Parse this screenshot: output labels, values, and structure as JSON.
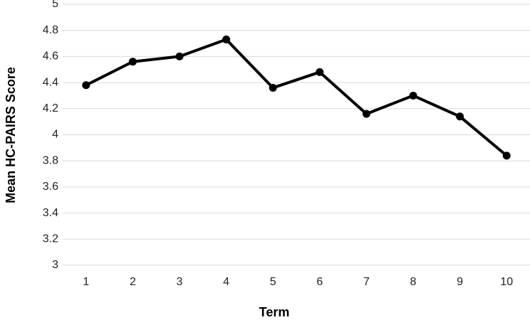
{
  "chart_data": {
    "type": "line",
    "x_label": "Term",
    "y_label": "Mean HC-PAIRS Score",
    "categories": [
      "1",
      "2",
      "3",
      "4",
      "5",
      "6",
      "7",
      "8",
      "9",
      "10"
    ],
    "values": [
      4.38,
      4.56,
      4.6,
      4.73,
      4.36,
      4.48,
      4.16,
      4.3,
      4.14,
      3.84
    ],
    "color": "#000000",
    "ylim": [
      3,
      5
    ],
    "yticks": [
      3,
      3.2,
      3.4,
      3.6,
      3.8,
      4,
      4.2,
      4.4,
      4.6,
      4.8,
      5
    ],
    "grid": true
  }
}
